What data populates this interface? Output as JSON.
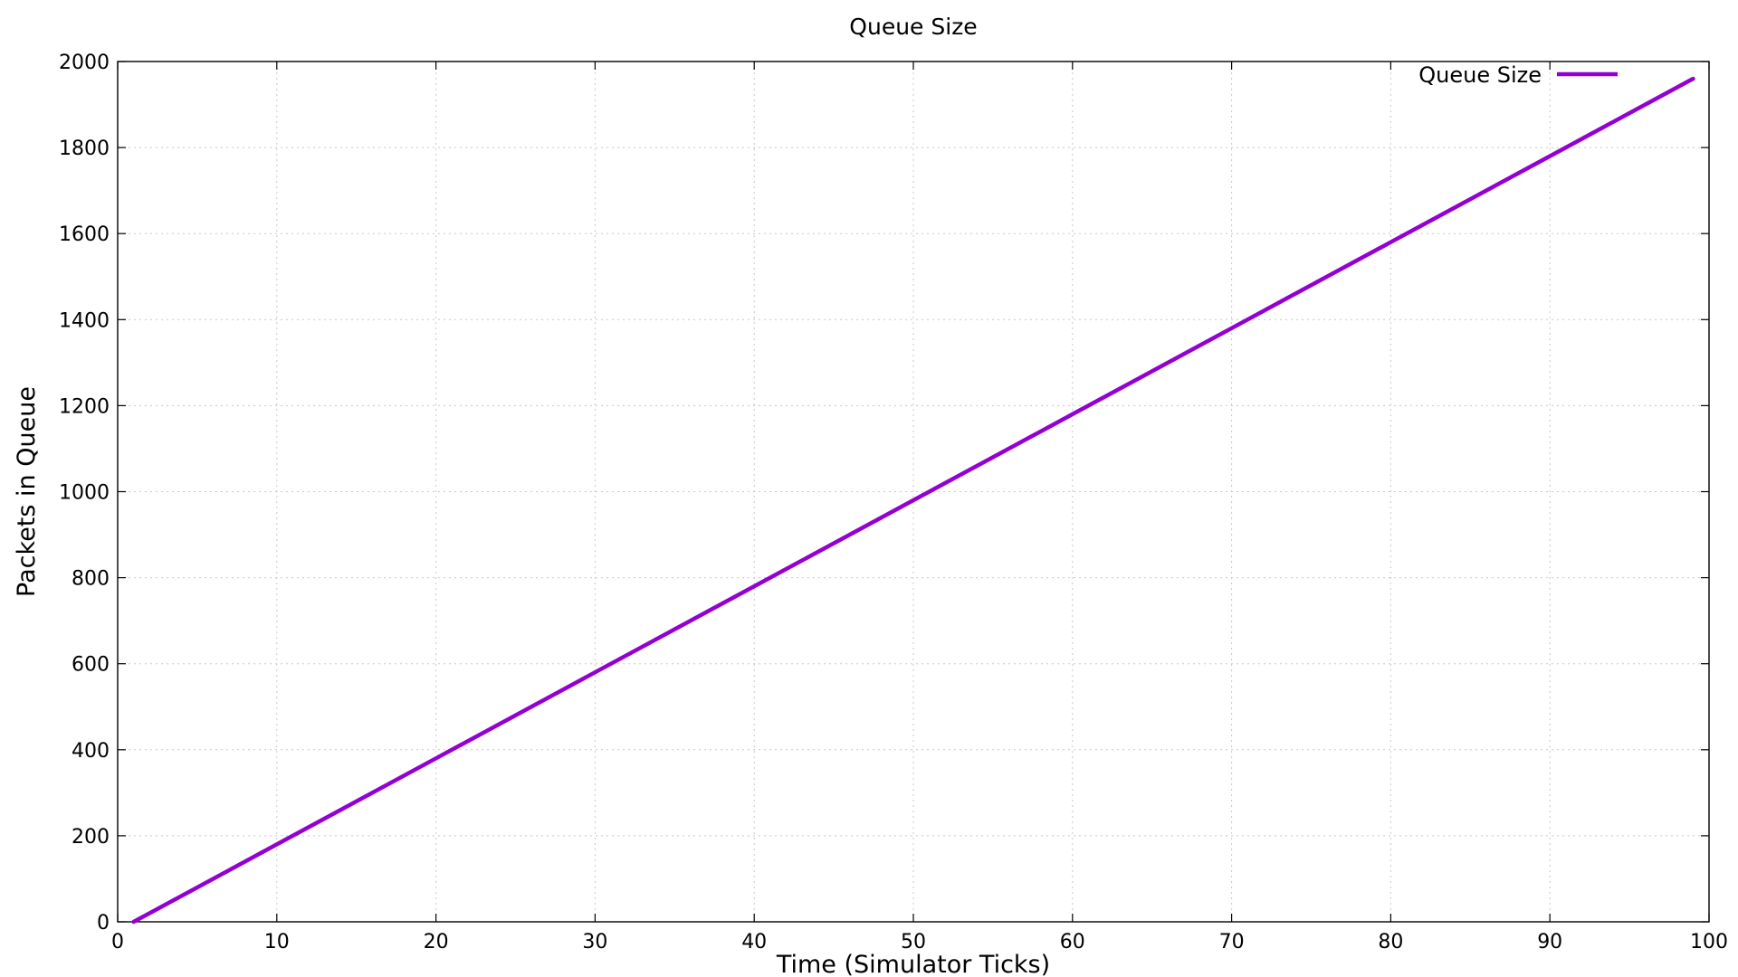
{
  "chart_data": {
    "type": "line",
    "title": "Queue Size",
    "xlabel": "Time (Simulator Ticks)",
    "ylabel": "Packets in Queue",
    "xlim": [
      0,
      100
    ],
    "ylim": [
      0,
      2000
    ],
    "xticks": [
      0,
      10,
      20,
      30,
      40,
      50,
      60,
      70,
      80,
      90,
      100
    ],
    "yticks": [
      0,
      200,
      400,
      600,
      800,
      1000,
      1200,
      1400,
      1600,
      1800,
      2000
    ],
    "grid": true,
    "legend_position": "top-right",
    "series": [
      {
        "name": "Queue Size",
        "color": "#9400d3",
        "x": [
          1,
          10,
          20,
          30,
          40,
          50,
          60,
          70,
          80,
          90,
          99
        ],
        "y": [
          0,
          180,
          380,
          580,
          780,
          980,
          1180,
          1380,
          1580,
          1780,
          1960
        ]
      }
    ]
  }
}
